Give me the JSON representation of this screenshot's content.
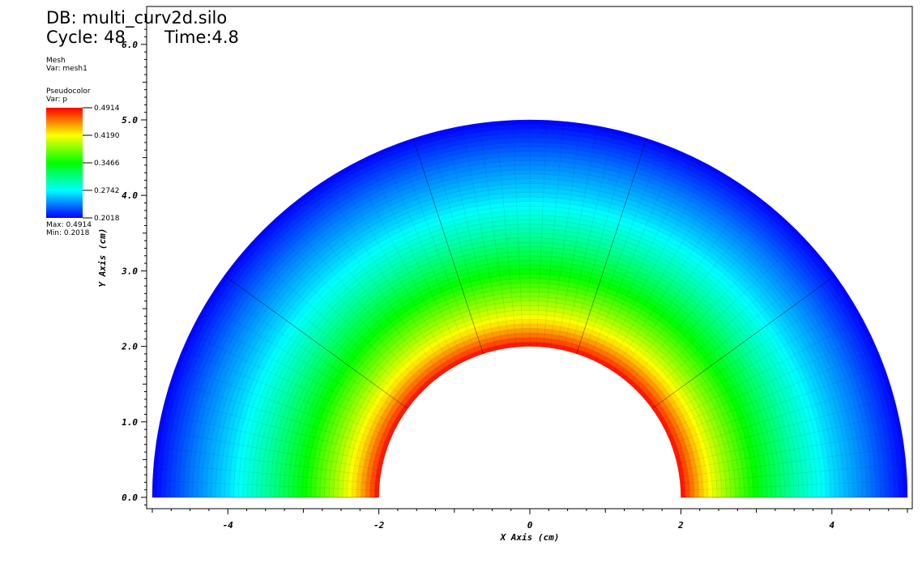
{
  "header": {
    "db": "DB: multi_curv2d.silo",
    "cycle": "Cycle: 48",
    "time": "Time:4.8"
  },
  "mesh_legend": {
    "title": "Mesh",
    "var": "Var: mesh1"
  },
  "pseudocolor_legend": {
    "title": "Pseudocolor",
    "var": "Var: p",
    "tick_labels": [
      "0.4914",
      "0.4190",
      "0.3466",
      "0.2742",
      "0.2018"
    ],
    "max_text": "Max:  0.4914",
    "min_text": "Min:  0.2018",
    "colors": [
      "#0000ff",
      "#00ffff",
      "#00ff00",
      "#ffff00",
      "#ff0000"
    ]
  },
  "chart_data": {
    "type": "heatmap",
    "plot_kind": "pseudocolor on curvilinear half-annulus mesh",
    "xlabel": "X Axis (cm)",
    "ylabel": "Y Axis (cm)",
    "xlim": [
      -5.0,
      5.0
    ],
    "ylim": [
      0.0,
      6.0
    ],
    "x_ticks": [
      -4,
      -2,
      0,
      2,
      4
    ],
    "x_tick_labels": [
      "-4",
      "-2",
      "0",
      "2",
      "4"
    ],
    "y_ticks": [
      0,
      1,
      2,
      3,
      4,
      5,
      6
    ],
    "y_tick_labels": [
      "0.0",
      "1.0",
      "2.0",
      "3.0",
      "4.0",
      "5.0",
      "6.0"
    ],
    "mesh": {
      "inner_radius": 2.0,
      "outer_radius": 5.0,
      "theta_range_deg": [
        0,
        180
      ],
      "radial_zones": 50,
      "angular_zones": 70,
      "blocks_angular": 5
    },
    "variable": "p",
    "value_range": [
      0.2018,
      0.4914
    ],
    "radial_profile": {
      "r": [
        2.0,
        2.1,
        2.3,
        2.6,
        3.0,
        3.5,
        4.0,
        4.5,
        5.0
      ],
      "p": [
        0.4914,
        0.468,
        0.43,
        0.39,
        0.345,
        0.3,
        0.265,
        0.235,
        0.2018
      ]
    },
    "grid": false
  }
}
